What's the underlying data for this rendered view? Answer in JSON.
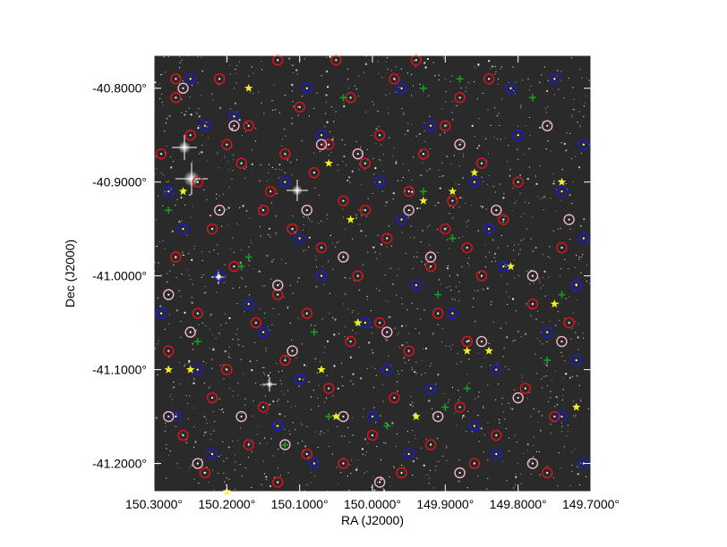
{
  "chart_data": {
    "type": "scatter",
    "title": "",
    "xlabel": "RA (J2000)",
    "ylabel": "Dec (J2000)",
    "xlim": [
      150.3,
      149.7
    ],
    "ylim": [
      -41.23,
      -40.765
    ],
    "xticks": [
      150.3,
      150.2,
      150.1,
      150.0,
      149.9,
      149.8,
      149.7
    ],
    "xtick_labels": [
      "150.3000°",
      "150.2000°",
      "150.1000°",
      "150.0000°",
      "149.9000°",
      "149.8000°",
      "149.7000°"
    ],
    "yticks": [
      -40.8,
      -40.9,
      -41.0,
      -41.1,
      -41.2
    ],
    "ytick_labels": [
      "-40.8000°",
      "-40.9000°",
      "-41.0000°",
      "-41.1000°",
      "-41.2000°"
    ],
    "grid": false,
    "legend": "none",
    "background_image": "star-field",
    "series": [
      {
        "marker": "circle",
        "color": "#e0141a",
        "points": [
          [
            150.27,
            -40.79
          ],
          [
            150.21,
            -40.79
          ],
          [
            150.13,
            -40.77
          ],
          [
            150.05,
            -40.77
          ],
          [
            149.94,
            -40.77
          ],
          [
            149.84,
            -40.79
          ],
          [
            150.27,
            -40.81
          ],
          [
            150.17,
            -40.84
          ],
          [
            150.1,
            -40.82
          ],
          [
            150.03,
            -40.81
          ],
          [
            149.97,
            -40.79
          ],
          [
            149.88,
            -40.81
          ],
          [
            150.25,
            -40.85
          ],
          [
            150.2,
            -40.86
          ],
          [
            150.12,
            -40.87
          ],
          [
            150.06,
            -40.86
          ],
          [
            149.99,
            -40.85
          ],
          [
            149.9,
            -40.84
          ],
          [
            150.29,
            -40.87
          ],
          [
            150.18,
            -40.88
          ],
          [
            150.08,
            -40.89
          ],
          [
            150.01,
            -40.88
          ],
          [
            149.93,
            -40.87
          ],
          [
            149.85,
            -40.88
          ],
          [
            150.24,
            -40.9
          ],
          [
            150.14,
            -40.91
          ],
          [
            150.04,
            -40.92
          ],
          [
            149.95,
            -40.91
          ],
          [
            149.89,
            -40.92
          ],
          [
            149.8,
            -40.9
          ],
          [
            150.22,
            -40.95
          ],
          [
            150.11,
            -40.95
          ],
          [
            150.07,
            -40.97
          ],
          [
            149.98,
            -40.96
          ],
          [
            149.9,
            -40.95
          ],
          [
            149.82,
            -40.94
          ],
          [
            150.27,
            -40.98
          ],
          [
            150.19,
            -40.99
          ],
          [
            150.13,
            -41.02
          ],
          [
            150.02,
            -41.0
          ],
          [
            149.92,
            -40.99
          ],
          [
            149.85,
            -41.0
          ],
          [
            150.24,
            -41.04
          ],
          [
            150.16,
            -41.05
          ],
          [
            150.09,
            -41.04
          ],
          [
            149.99,
            -41.05
          ],
          [
            149.91,
            -41.04
          ],
          [
            149.78,
            -41.03
          ],
          [
            150.28,
            -41.08
          ],
          [
            150.2,
            -41.1
          ],
          [
            150.12,
            -41.09
          ],
          [
            150.03,
            -41.07
          ],
          [
            149.95,
            -41.08
          ],
          [
            149.87,
            -41.07
          ],
          [
            150.22,
            -41.13
          ],
          [
            150.15,
            -41.14
          ],
          [
            150.06,
            -41.12
          ],
          [
            149.97,
            -41.13
          ],
          [
            149.88,
            -41.14
          ],
          [
            149.79,
            -41.12
          ],
          [
            150.26,
            -41.17
          ],
          [
            150.17,
            -41.18
          ],
          [
            150.09,
            -41.19
          ],
          [
            150.0,
            -41.17
          ],
          [
            149.92,
            -41.18
          ],
          [
            149.83,
            -41.17
          ],
          [
            150.23,
            -41.21
          ],
          [
            150.13,
            -41.22
          ],
          [
            150.04,
            -41.2
          ],
          [
            149.96,
            -41.21
          ],
          [
            149.86,
            -41.2
          ],
          [
            149.76,
            -41.21
          ],
          [
            149.74,
            -40.97
          ],
          [
            149.73,
            -41.05
          ],
          [
            149.75,
            -41.15
          ],
          [
            150.01,
            -40.93
          ],
          [
            149.87,
            -40.97
          ],
          [
            150.15,
            -40.93
          ]
        ]
      },
      {
        "marker": "circle",
        "color": "#1a1ae0",
        "points": [
          [
            150.25,
            -40.79
          ],
          [
            150.09,
            -40.8
          ],
          [
            149.96,
            -40.8
          ],
          [
            149.81,
            -40.8
          ],
          [
            149.75,
            -40.79
          ],
          [
            150.23,
            -40.84
          ],
          [
            150.07,
            -40.85
          ],
          [
            149.92,
            -40.84
          ],
          [
            149.8,
            -40.85
          ],
          [
            149.71,
            -40.86
          ],
          [
            150.28,
            -40.91
          ],
          [
            150.12,
            -40.9
          ],
          [
            149.99,
            -40.9
          ],
          [
            149.86,
            -40.9
          ],
          [
            149.74,
            -40.91
          ],
          [
            150.26,
            -40.95
          ],
          [
            150.1,
            -40.96
          ],
          [
            149.96,
            -40.94
          ],
          [
            149.84,
            -40.95
          ],
          [
            149.71,
            -40.96
          ],
          [
            150.21,
            -41.0
          ],
          [
            150.07,
            -41.0
          ],
          [
            149.94,
            -41.01
          ],
          [
            149.82,
            -40.99
          ],
          [
            149.72,
            -41.01
          ],
          [
            150.29,
            -41.04
          ],
          [
            150.15,
            -41.06
          ],
          [
            150.01,
            -41.05
          ],
          [
            149.89,
            -41.04
          ],
          [
            149.76,
            -41.06
          ],
          [
            150.24,
            -41.1
          ],
          [
            150.1,
            -41.11
          ],
          [
            149.98,
            -41.1
          ],
          [
            149.83,
            -41.1
          ],
          [
            149.72,
            -41.09
          ],
          [
            150.27,
            -41.15
          ],
          [
            150.13,
            -41.16
          ],
          [
            150.0,
            -41.15
          ],
          [
            149.86,
            -41.16
          ],
          [
            149.74,
            -41.15
          ],
          [
            150.22,
            -41.19
          ],
          [
            150.08,
            -41.2
          ],
          [
            149.95,
            -41.19
          ],
          [
            149.83,
            -41.19
          ],
          [
            149.71,
            -41.2
          ],
          [
            150.17,
            -41.03
          ],
          [
            149.92,
            -41.12
          ],
          [
            150.19,
            -40.83
          ]
        ]
      },
      {
        "marker": "circle",
        "color": "#f2b8c6",
        "points": [
          [
            150.26,
            -40.8
          ],
          [
            150.19,
            -40.84
          ],
          [
            150.07,
            -40.86
          ],
          [
            150.02,
            -40.87
          ],
          [
            149.88,
            -40.86
          ],
          [
            149.76,
            -40.84
          ],
          [
            150.21,
            -40.93
          ],
          [
            150.09,
            -40.93
          ],
          [
            149.95,
            -40.93
          ],
          [
            149.83,
            -40.93
          ],
          [
            149.73,
            -40.94
          ],
          [
            150.28,
            -41.02
          ],
          [
            150.13,
            -41.01
          ],
          [
            150.04,
            -40.98
          ],
          [
            149.92,
            -40.98
          ],
          [
            149.78,
            -41.0
          ],
          [
            150.25,
            -41.06
          ],
          [
            150.11,
            -41.08
          ],
          [
            149.98,
            -41.06
          ],
          [
            149.85,
            -41.07
          ],
          [
            149.74,
            -41.07
          ],
          [
            150.28,
            -41.15
          ],
          [
            150.18,
            -41.15
          ],
          [
            150.04,
            -41.15
          ],
          [
            149.91,
            -41.15
          ],
          [
            149.8,
            -41.13
          ],
          [
            150.24,
            -41.2
          ],
          [
            150.12,
            -41.18
          ],
          [
            149.99,
            -41.22
          ],
          [
            149.88,
            -41.21
          ],
          [
            149.78,
            -41.2
          ]
        ]
      },
      {
        "marker": "plus",
        "color": "#14a01e",
        "points": [
          [
            150.28,
            -40.93
          ],
          [
            150.04,
            -40.81
          ],
          [
            149.93,
            -40.8
          ],
          [
            149.88,
            -40.79
          ],
          [
            149.78,
            -40.81
          ],
          [
            150.17,
            -40.98
          ],
          [
            149.93,
            -40.91
          ],
          [
            149.89,
            -40.96
          ],
          [
            149.74,
            -41.02
          ],
          [
            150.24,
            -41.07
          ],
          [
            150.08,
            -41.06
          ],
          [
            149.91,
            -41.02
          ],
          [
            149.87,
            -41.12
          ],
          [
            150.06,
            -41.15
          ],
          [
            150.12,
            -41.18
          ],
          [
            149.76,
            -41.09
          ],
          [
            149.9,
            -41.14
          ],
          [
            149.98,
            -41.16
          ],
          [
            150.02,
            -41.05
          ],
          [
            150.18,
            -40.99
          ]
        ]
      },
      {
        "marker": "star",
        "color": "#f5f01c",
        "points": [
          [
            150.17,
            -40.8
          ],
          [
            150.06,
            -40.88
          ],
          [
            150.03,
            -40.94
          ],
          [
            150.26,
            -40.91
          ],
          [
            149.89,
            -40.91
          ],
          [
            149.86,
            -40.89
          ],
          [
            149.74,
            -40.9
          ],
          [
            149.93,
            -40.92
          ],
          [
            149.81,
            -40.99
          ],
          [
            150.02,
            -41.05
          ],
          [
            150.07,
            -41.1
          ],
          [
            149.84,
            -41.08
          ],
          [
            150.28,
            -41.1
          ],
          [
            150.25,
            -41.1
          ],
          [
            149.75,
            -41.03
          ],
          [
            150.05,
            -41.15
          ],
          [
            149.94,
            -41.15
          ],
          [
            149.72,
            -41.14
          ],
          [
            150.2,
            -41.23
          ],
          [
            149.87,
            -41.08
          ]
        ]
      }
    ]
  }
}
